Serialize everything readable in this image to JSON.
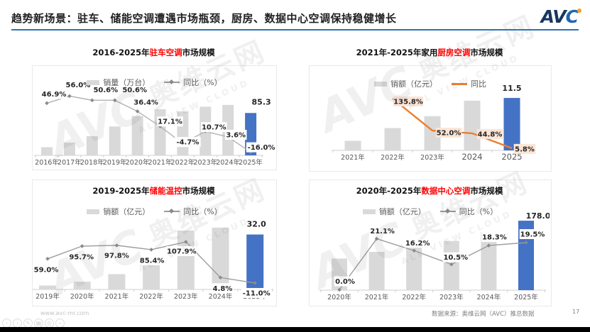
{
  "header": {
    "title": "趋势新场景：驻车、储能空调遭遇市场瓶颈，厨房、数据中心空调保持稳健增长",
    "logo_av": "AV",
    "logo_c": "C"
  },
  "watermark": {
    "logo": "AVC",
    "cn": "奥维云网",
    "en": "ALL VIEW CLOUD"
  },
  "colors": {
    "bar_gray": "#D9D9D9",
    "bar_highlight_blue": "#4472C4",
    "line_orange": "#ED7D31",
    "line_gray": "#9c9c9c",
    "title_red": "#FF0000",
    "divider_blue": "#2E74B5",
    "label_bg_peach": "#FBE5D6"
  },
  "chart_data": [
    {
      "id": "parking-ac",
      "type": "bar+line",
      "title": {
        "prefix": "2016-2025年",
        "highlight": "驻车空调",
        "suffix": "市场规模",
        "full": "2016-2025年驻车空调市场规模"
      },
      "legend": {
        "bar": "销量（万台）",
        "line": "同比（%）"
      },
      "categories": [
        "2016年",
        "2017年",
        "2018年",
        "2019年",
        "2020年",
        "2021年",
        "2022年",
        "2023年",
        "2024年",
        "2025年"
      ],
      "series": [
        {
          "name": "销量（万台）",
          "type": "bar",
          "unit": "万台",
          "values": [
            16.4,
            25.6,
            38.6,
            58.2,
            79.3,
            92.9,
            88.5,
            98.0,
            101.6,
            85.3
          ],
          "bars_estimated_from_yoy": true
        },
        {
          "name": "同比（%）",
          "type": "line",
          "unit": "%",
          "values": [
            46.9,
            56.0,
            50.6,
            50.6,
            36.4,
            17.1,
            -4.7,
            10.7,
            3.6,
            -16.0
          ]
        }
      ],
      "line_labels": [
        "46.9%",
        "56.0%",
        "50.6%",
        "50.6%",
        "36.4%",
        "17.1%",
        "-4.7%",
        "10.7%",
        "3.6%",
        "-16.0%"
      ],
      "highlight_bar": {
        "category": "2025年",
        "value_label": "85.3",
        "color": "#4472C4"
      },
      "secondary_axis_estimate": [
        -20,
        60
      ]
    },
    {
      "id": "kitchen-ac",
      "type": "bar+line",
      "title": {
        "prefix": "2021年-2025年家用",
        "highlight": "厨房空调",
        "suffix": "市场规模",
        "full": "2021年-2025年家用厨房空调市场规模"
      },
      "legend": {
        "bar": "销额（亿元）",
        "line": "同比"
      },
      "categories": [
        "2021年",
        "2022年",
        "2023年",
        "2024",
        "2025"
      ],
      "series": [
        {
          "name": "销额（亿元）",
          "type": "bar",
          "unit": "亿元",
          "values": [
            2.1,
            4.9,
            7.5,
            10.9,
            11.5
          ],
          "bars_estimated_from_yoy": true
        },
        {
          "name": "同比",
          "type": "line",
          "unit": "%",
          "values": [
            null,
            135.8,
            52.0,
            44.8,
            5.8
          ]
        }
      ],
      "line_labels": [
        "",
        "135.8%",
        "52.0%",
        "44.8%",
        "5.8%"
      ],
      "highlight_bar": {
        "category": "2025",
        "value_label": "11.5",
        "color": "#4472C4"
      },
      "secondary_axis_estimate": [
        0,
        150
      ]
    },
    {
      "id": "energy-storage",
      "type": "bar+line",
      "title": {
        "prefix": "2019-2025年",
        "highlight": "储能温控",
        "suffix": "市场规模",
        "full": "2019-2025年储能温控市场规模"
      },
      "legend": {
        "bar": "销额（亿元）",
        "line": "同比（%）"
      },
      "categories": [
        "2019年",
        "2020年",
        "2021年",
        "2022年",
        "2023年",
        "2024年",
        "2025年"
      ],
      "series": [
        {
          "name": "销额（亿元）",
          "type": "bar",
          "unit": "亿元",
          "values": [
            2.3,
            4.5,
            8.9,
            16.5,
            34.3,
            36.0,
            32.0
          ],
          "bars_estimated_from_yoy": true
        },
        {
          "name": "同比（%）",
          "type": "line",
          "unit": "%",
          "values": [
            59.0,
            95.7,
            97.8,
            85.4,
            107.9,
            4.8,
            -11.0
          ]
        }
      ],
      "line_labels": [
        "59.0%",
        "95.7%",
        "97.8%",
        "85.4%",
        "107.9%",
        "4.8%",
        "-11.0%"
      ],
      "highlight_bar": {
        "category": "2025年",
        "value_label": "32.0",
        "color": "#4472C4"
      },
      "secondary_axis_estimate": [
        -20,
        120
      ]
    },
    {
      "id": "data-center-ac",
      "type": "bar+line",
      "title": {
        "prefix": "2020年-2025年",
        "highlight": "数据中心空调",
        "suffix": "市场规模",
        "full": "2020年-2025年数据中心空调市场规模"
      },
      "legend": {
        "bar": "销额（亿元）",
        "line": "同比（%）"
      },
      "categories": [
        "2020年",
        "2021年",
        "2022年",
        "2023年",
        "2024年",
        "2025年"
      ],
      "series": [
        {
          "name": "销额（亿元）",
          "type": "bar",
          "unit": "亿元",
          "values": [
            81,
            98,
            114,
            126,
            149,
            178
          ],
          "bars_estimated_from_yoy": true
        },
        {
          "name": "同比（%）",
          "type": "line",
          "unit": "%",
          "values": [
            0.0,
            21.1,
            16.2,
            10.5,
            18.3,
            19.5
          ]
        }
      ],
      "line_labels": [
        "0.0%",
        "21.1%",
        "16.2%",
        "10.5%",
        "18.3%",
        "19.5%"
      ],
      "highlight_bar": {
        "category": "2025年",
        "value_label": "178.0",
        "color": "#4472C4"
      },
      "secondary_axis_estimate": [
        -5,
        25
      ]
    }
  ],
  "footer": {
    "website": "www.avc-mr.com",
    "source": "数据来源：奥维云网（AVC）推总数据",
    "page": "17",
    "controls": [
      {
        "name": "prev",
        "glyph": "‹"
      },
      {
        "name": "next",
        "glyph": "›"
      },
      {
        "name": "edit",
        "glyph": "✎"
      },
      {
        "name": "grid",
        "glyph": "▦"
      },
      {
        "name": "zoom",
        "glyph": "◎"
      },
      {
        "name": "minimize",
        "glyph": "−"
      }
    ]
  }
}
